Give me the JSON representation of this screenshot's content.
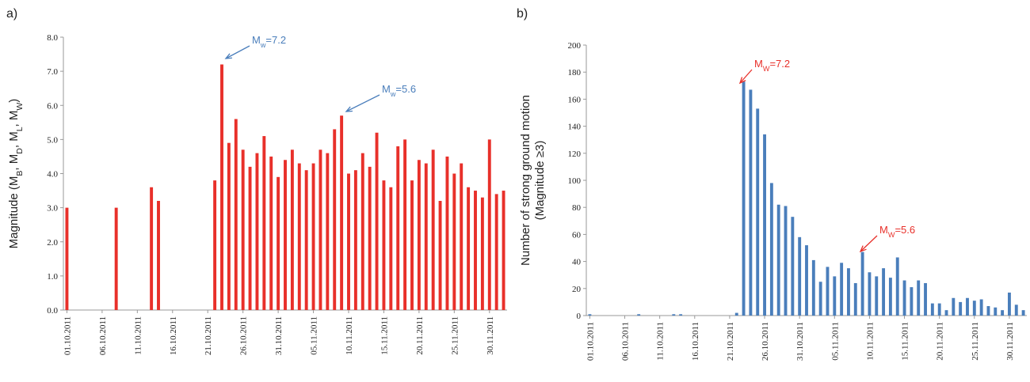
{
  "chart_data": [
    {
      "type": "bar",
      "panel_label": "a)",
      "ylabel": [
        {
          "text": "Magnitude (M"
        },
        {
          "text": "B",
          "sub": true
        },
        {
          "text": ", M"
        },
        {
          "text": "D",
          "sub": true
        },
        {
          "text": ", M"
        },
        {
          "text": "L",
          "sub": true
        },
        {
          "text": ", M"
        },
        {
          "text": "W",
          "sub": true
        },
        {
          "text": ")"
        }
      ],
      "categories": [
        "01.10.2011",
        null,
        null,
        null,
        null,
        "06.10.2011",
        null,
        null,
        null,
        null,
        "11.10.2011",
        null,
        null,
        null,
        null,
        "16.10.2011",
        null,
        null,
        null,
        null,
        "21.10.2011",
        null,
        null,
        null,
        null,
        "26.10.2011",
        null,
        null,
        null,
        null,
        "31.10.2011",
        null,
        null,
        null,
        null,
        "05.11.2011",
        null,
        null,
        null,
        null,
        "10.11.2011",
        null,
        null,
        null,
        null,
        "15.11.2011",
        null,
        null,
        null,
        null,
        "20.11.2011",
        null,
        null,
        null,
        null,
        "25.11.2011",
        null,
        null,
        null,
        null,
        "30.11.2011",
        null,
        null
      ],
      "values": [
        3.0,
        null,
        null,
        null,
        null,
        null,
        null,
        3.0,
        null,
        null,
        null,
        null,
        3.6,
        3.2,
        null,
        null,
        null,
        null,
        null,
        null,
        null,
        3.8,
        7.2,
        4.9,
        5.6,
        4.7,
        4.2,
        4.6,
        5.1,
        4.5,
        3.9,
        4.4,
        4.7,
        4.3,
        4.1,
        4.3,
        4.7,
        4.6,
        5.3,
        5.7,
        4.0,
        4.1,
        4.6,
        4.2,
        5.2,
        3.8,
        3.6,
        4.8,
        5.0,
        3.8,
        4.4,
        4.3,
        4.7,
        3.2,
        4.5,
        4.0,
        4.3,
        3.6,
        3.5,
        3.3,
        5.0,
        3.4,
        3.5
      ],
      "color": "#e8302a",
      "ylim": [
        0,
        8
      ],
      "yticks": [
        {
          "value": 0,
          "label": "0.0"
        },
        {
          "value": 1,
          "label": "1.0"
        },
        {
          "value": 2,
          "label": "2.0"
        },
        {
          "value": 3,
          "label": "3.0"
        },
        {
          "value": 4,
          "label": "4.0"
        },
        {
          "value": 5,
          "label": "5.0"
        },
        {
          "value": 6,
          "label": "6.0"
        },
        {
          "value": 7,
          "label": "7.0"
        },
        {
          "value": 8,
          "label": "8.0"
        }
      ],
      "annotations": [
        [
          {
            "text": "M"
          },
          {
            "text": "w",
            "sub": true
          },
          {
            "text": "=7.2"
          }
        ],
        [
          {
            "text": "M"
          },
          {
            "text": "w",
            "sub": true
          },
          {
            "text": "=5.6"
          }
        ]
      ],
      "annotation_color": "#4a7ebb"
    },
    {
      "type": "bar",
      "panel_label": "b)",
      "ylabel": [
        {
          "text": "Number of strong ground motion"
        },
        {
          "text": "(Magnitude ≥3)",
          "line": 2
        }
      ],
      "categories": [
        "01.10.2011",
        null,
        null,
        null,
        null,
        "06.10.2011",
        null,
        null,
        null,
        null,
        "11.10.2011",
        null,
        null,
        null,
        null,
        "16.10.2011",
        null,
        null,
        null,
        null,
        "21.10.2011",
        null,
        null,
        null,
        null,
        "26.10.2011",
        null,
        null,
        null,
        null,
        "31.10.2011",
        null,
        null,
        null,
        null,
        "05.11.2011",
        null,
        null,
        null,
        null,
        "10.11.2011",
        null,
        null,
        null,
        null,
        "15.11.2011",
        null,
        null,
        null,
        null,
        "20.11.2011",
        null,
        null,
        null,
        null,
        "25.11.2011",
        null,
        null,
        null,
        null,
        "30.11.2011",
        null,
        null
      ],
      "values": [
        1,
        0,
        0,
        0,
        0,
        0,
        0,
        1,
        0,
        0,
        0,
        0,
        1,
        1,
        0,
        0,
        0,
        0,
        0,
        0,
        0,
        2,
        173,
        167,
        153,
        134,
        98,
        82,
        81,
        73,
        58,
        52,
        41,
        25,
        36,
        29,
        39,
        35,
        24,
        47,
        32,
        29,
        35,
        28,
        43,
        26,
        21,
        26,
        24,
        9,
        9,
        4,
        13,
        10,
        13,
        11,
        12,
        7,
        6,
        4,
        17,
        8,
        4
      ],
      "color": "#4a7ebb",
      "ylim": [
        0,
        200
      ],
      "yticks": [
        0,
        20,
        40,
        60,
        80,
        100,
        120,
        140,
        160,
        180,
        200
      ],
      "annotations": [
        [
          {
            "text": "M"
          },
          {
            "text": "W",
            "sub": true
          },
          {
            "text": "=7.2"
          }
        ],
        [
          {
            "text": "M"
          },
          {
            "text": "W",
            "sub": true
          },
          {
            "text": "=5.6"
          }
        ]
      ],
      "annotation_color": "#e8302a"
    }
  ]
}
